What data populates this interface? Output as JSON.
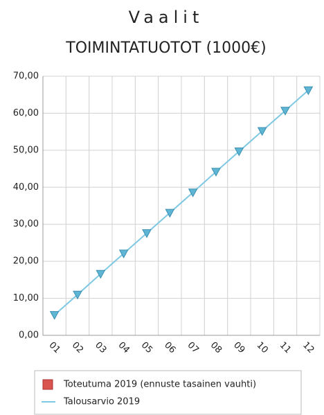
{
  "chart_data": {
    "type": "line",
    "title": "Vaalit",
    "subtitle": "TOIMINTATUOTOT (1000€)",
    "categories": [
      "01",
      "02",
      "03",
      "04",
      "05",
      "06",
      "07",
      "08",
      "09",
      "10",
      "11",
      "12"
    ],
    "series": [
      {
        "name": "Toteutuma 2019 (ennuste tasainen vauhti)",
        "color": "#d9534f",
        "values": [
          null,
          null,
          null,
          null,
          null,
          null,
          null,
          null,
          null,
          null,
          null,
          null
        ]
      },
      {
        "name": "Talousarvio 2019",
        "color": "#7ec8e3",
        "values": [
          5.5,
          11.0,
          16.6,
          22.1,
          27.6,
          33.1,
          38.6,
          44.2,
          49.7,
          55.2,
          60.7,
          66.2
        ]
      }
    ],
    "ylim": [
      0,
      70
    ],
    "yticks": [
      {
        "value": 0,
        "label": "0,00"
      },
      {
        "value": 10,
        "label": "10,00"
      },
      {
        "value": 20,
        "label": "20,00"
      },
      {
        "value": 30,
        "label": "30,00"
      },
      {
        "value": 40,
        "label": "40,00"
      },
      {
        "value": 50,
        "label": "50,00"
      },
      {
        "value": 60,
        "label": "60,00"
      },
      {
        "value": 70,
        "label": "70,00"
      }
    ],
    "grid": true
  }
}
